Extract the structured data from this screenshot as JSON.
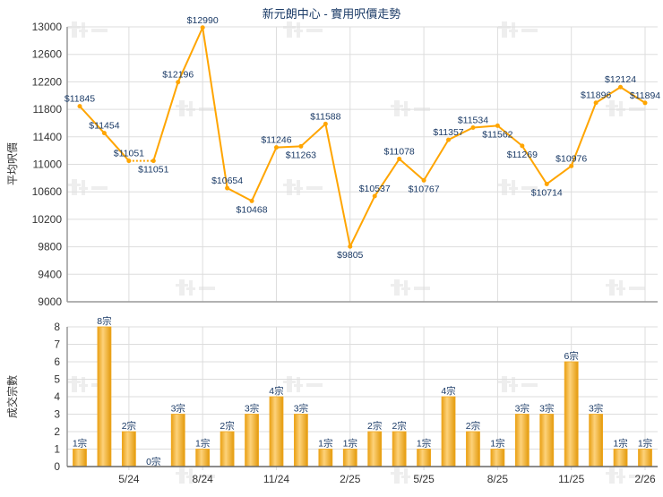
{
  "chart_data": [
    {
      "type": "line",
      "title": "新元朗中心 - 實用呎價走勢",
      "ylabel": "平均呎價",
      "ylim": [
        9000,
        13000
      ],
      "yticks": [
        9000,
        9400,
        9800,
        10200,
        10600,
        11000,
        11400,
        11800,
        12200,
        12600,
        13000
      ],
      "grid": true,
      "color": "#FFA500",
      "values": [
        11845,
        11454,
        11051,
        11051,
        12196,
        12990,
        10654,
        10468,
        11246,
        11263,
        11588,
        9805,
        10537,
        11078,
        10767,
        11357,
        11534,
        11562,
        11269,
        10714,
        10976,
        11896,
        12124,
        11894
      ],
      "data_labels": [
        "$11845",
        "$11454",
        "$11051",
        "$11051",
        "$12196",
        "$12990",
        "$10654",
        "$10468",
        "$11246",
        "$11263",
        "$11588",
        "$9805",
        "$10537",
        "$11078",
        "$10767",
        "$11357",
        "$11534",
        "$11562",
        "$11269",
        "$10714",
        "$10976",
        "$11896",
        "$12124",
        "$11894"
      ]
    },
    {
      "type": "bar",
      "ylabel": "成交宗數",
      "ylim": [
        0,
        8
      ],
      "yticks": [
        0,
        1,
        2,
        3,
        4,
        5,
        6,
        7,
        8
      ],
      "grid": true,
      "color": "#F5B52E",
      "values": [
        1,
        8,
        2,
        0,
        3,
        1,
        2,
        3,
        4,
        3,
        1,
        1,
        2,
        2,
        1,
        4,
        2,
        1,
        3,
        3,
        6,
        3,
        1,
        1
      ],
      "data_labels": [
        "1宗",
        "8宗",
        "2宗",
        "0宗",
        "3宗",
        "1宗",
        "2宗",
        "3宗",
        "4宗",
        "3宗",
        "1宗",
        "1宗",
        "2宗",
        "2宗",
        "1宗",
        "4宗",
        "2宗",
        "1宗",
        "3宗",
        "3宗",
        "6宗",
        "3宗",
        "1宗",
        "1宗"
      ],
      "xtick_labels": [
        "5/24",
        "8/24",
        "11/24",
        "2/25",
        "5/25",
        "8/25",
        "11/25",
        "2/26"
      ]
    }
  ],
  "watermark": "科一"
}
